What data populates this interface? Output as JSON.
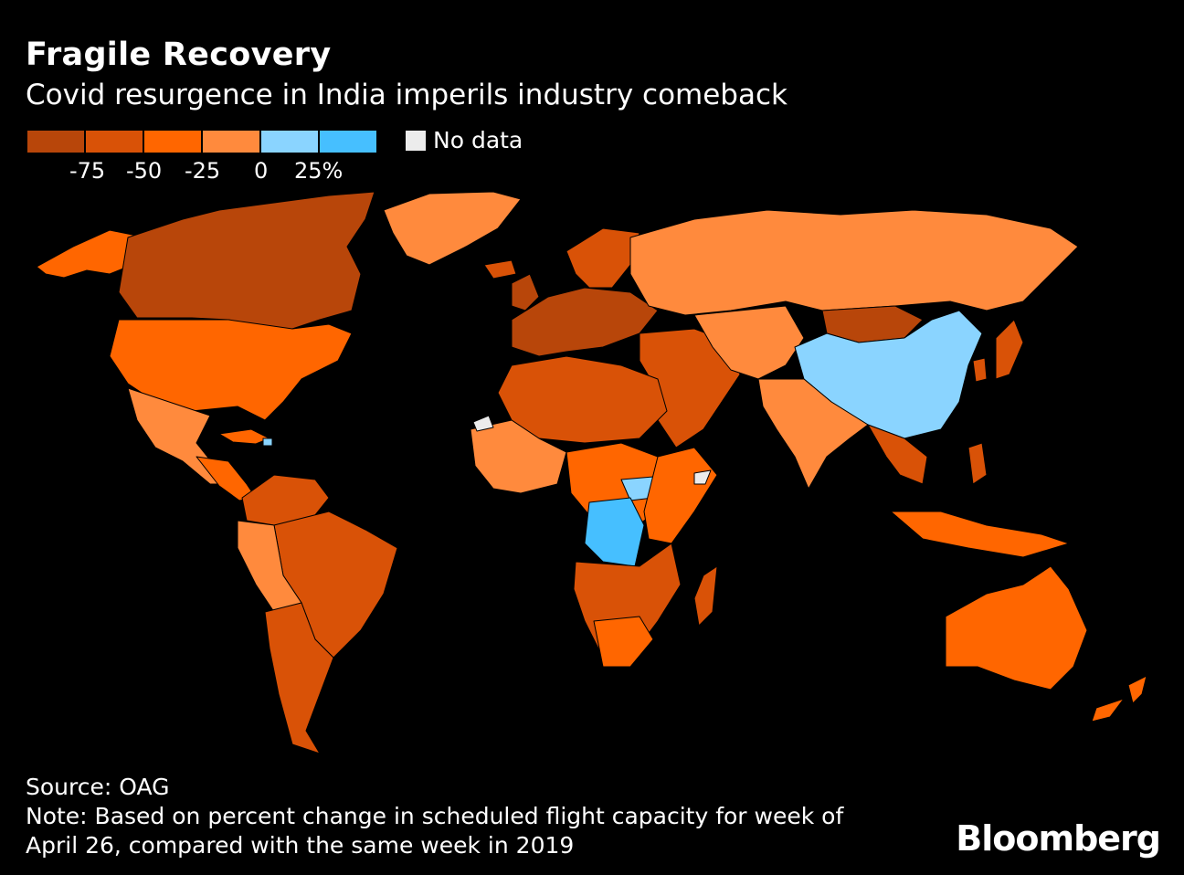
{
  "header": {
    "title": "Fragile Recovery",
    "subtitle": "Covid resurgence in India imperils industry comeback"
  },
  "legend": {
    "colors": [
      "#b8460a",
      "#d95207",
      "#ff6600",
      "#ff8a3d",
      "#8ad4ff",
      "#46bfff"
    ],
    "tick_labels": [
      "-75",
      "-50",
      "-25",
      "0",
      "25%"
    ],
    "no_data_label": "No data",
    "no_data_color": "#ececec"
  },
  "map": {
    "highlighted_above_zero": [
      "China",
      "Democratic Republic of the Congo",
      "South Sudan",
      "Cuba"
    ],
    "no_data_regions": [
      "Western Sahara",
      "Somalia"
    ]
  },
  "footer": {
    "source": "Source: OAG",
    "note_line1": "Note: Based on percent change in scheduled flight capacity for week of",
    "note_line2": "April 26, compared with the same week in 2019"
  },
  "brand": "Bloomberg"
}
